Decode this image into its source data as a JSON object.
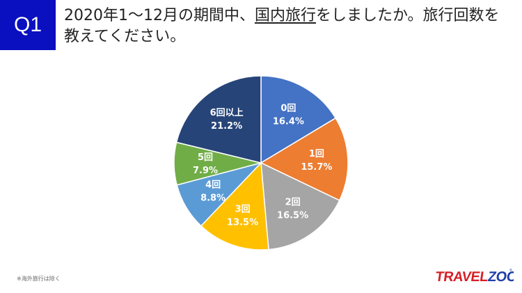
{
  "question": {
    "badge": "Q1",
    "title_before": "2020年1〜12月の期間中、",
    "title_underlined": "国内旅行",
    "title_after": "をしましたか。旅行回数を教えてください。"
  },
  "chart_data": {
    "type": "pie",
    "categories": [
      "0回",
      "1回",
      "2回",
      "3回",
      "4回",
      "5回",
      "6回以上"
    ],
    "values": [
      16.4,
      15.7,
      16.5,
      13.5,
      8.8,
      7.9,
      21.2
    ],
    "value_labels": [
      "16.4%",
      "15.7%",
      "16.5%",
      "13.5%",
      "8.8%",
      "7.9%",
      "21.2%"
    ],
    "colors": [
      "#4472c4",
      "#ed7d31",
      "#a5a5a5",
      "#ffc000",
      "#5b9bd5",
      "#70ad47",
      "#264478"
    ],
    "start": "12 o'clock",
    "direction": "clockwise",
    "legend": "none"
  },
  "footnote": "※海外旅行は除く",
  "logo": {
    "text_travel": "TRAVEL",
    "text_zoo": "ZOO",
    "mark": "®",
    "color_travel": "#d81e26",
    "color_zoo": "#1f3fa8"
  }
}
